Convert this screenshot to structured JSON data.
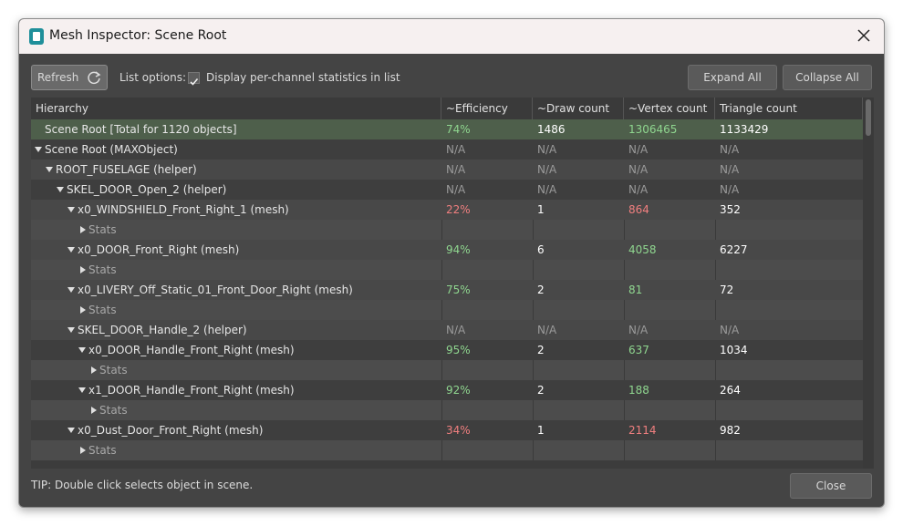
{
  "window": {
    "title": "Mesh Inspector: Scene Root"
  },
  "toolbar": {
    "refresh": "Refresh",
    "list_options": "List options:",
    "checkbox_label": "Display per-channel statistics in list",
    "checkbox_checked": true,
    "expand_all": "Expand All",
    "collapse_all": "Collapse All"
  },
  "table": {
    "headers": [
      "Hierarchy",
      "~Efficiency",
      "~Draw count",
      "~Vertex count",
      "Triangle count"
    ],
    "rows": [
      {
        "label": "Scene Root [Total for 1120 objects]",
        "level": 0,
        "expander": "none",
        "highlight": "#4e5f4b",
        "cells": [
          "74%",
          "1486",
          "1306465",
          "1133429"
        ],
        "colors": [
          "#8fd68f",
          "#ffffff",
          "#8fd68f",
          "#ffffff"
        ]
      },
      {
        "label": "Scene Root (MAXObject)",
        "level": 0,
        "expander": "open",
        "cells": [
          "N/A",
          "N/A",
          "N/A",
          "N/A"
        ],
        "colors": [
          "#9a9a9a",
          "#9a9a9a",
          "#9a9a9a",
          "#9a9a9a"
        ]
      },
      {
        "label": "ROOT_FUSELAGE (helper)",
        "level": 1,
        "expander": "open",
        "cells": [
          "N/A",
          "N/A",
          "N/A",
          "N/A"
        ],
        "colors": [
          "#9a9a9a",
          "#9a9a9a",
          "#9a9a9a",
          "#9a9a9a"
        ]
      },
      {
        "label": "SKEL_DOOR_Open_2 (helper)",
        "level": 2,
        "expander": "open",
        "cells": [
          "N/A",
          "N/A",
          "N/A",
          "N/A"
        ],
        "colors": [
          "#9a9a9a",
          "#9a9a9a",
          "#9a9a9a",
          "#9a9a9a"
        ]
      },
      {
        "label": "x0_WINDSHIELD_Front_Right_1 (mesh)",
        "level": 3,
        "expander": "open",
        "cells": [
          "22%",
          "1",
          "864",
          "352"
        ],
        "colors": [
          "#f07f7f",
          "#ffffff",
          "#f07f7f",
          "#ffffff"
        ]
      },
      {
        "label": "Stats",
        "level": 4,
        "expander": "closed"
      },
      {
        "label": "x0_DOOR_Front_Right (mesh)",
        "level": 3,
        "expander": "open",
        "cells": [
          "94%",
          "6",
          "4058",
          "6227"
        ],
        "colors": [
          "#8fd68f",
          "#ffffff",
          "#8fd68f",
          "#ffffff"
        ]
      },
      {
        "label": "Stats",
        "level": 4,
        "expander": "closed"
      },
      {
        "label": "x0_LIVERY_Off_Static_01_Front_Door_Right (mesh)",
        "level": 3,
        "expander": "open",
        "cells": [
          "75%",
          "2",
          "81",
          "72"
        ],
        "colors": [
          "#8fd68f",
          "#ffffff",
          "#8fd68f",
          "#ffffff"
        ]
      },
      {
        "label": "Stats",
        "level": 4,
        "expander": "closed"
      },
      {
        "label": "SKEL_DOOR_Handle_2 (helper)",
        "level": 3,
        "expander": "open",
        "cells": [
          "N/A",
          "N/A",
          "N/A",
          "N/A"
        ],
        "colors": [
          "#9a9a9a",
          "#9a9a9a",
          "#9a9a9a",
          "#9a9a9a"
        ]
      },
      {
        "label": "x0_DOOR_Handle_Front_Right (mesh)",
        "level": 4,
        "expander": "open",
        "cells": [
          "95%",
          "2",
          "637",
          "1034"
        ],
        "colors": [
          "#8fd68f",
          "#ffffff",
          "#8fd68f",
          "#ffffff"
        ]
      },
      {
        "label": "Stats",
        "level": 5,
        "expander": "closed"
      },
      {
        "label": "x1_DOOR_Handle_Front_Right (mesh)",
        "level": 4,
        "expander": "open",
        "cells": [
          "92%",
          "2",
          "188",
          "264"
        ],
        "colors": [
          "#8fd68f",
          "#ffffff",
          "#8fd68f",
          "#ffffff"
        ]
      },
      {
        "label": "Stats",
        "level": 5,
        "expander": "closed"
      },
      {
        "label": "x0_Dust_Door_Front_Right (mesh)",
        "level": 3,
        "expander": "open",
        "cells": [
          "34%",
          "1",
          "2114",
          "982"
        ],
        "colors": [
          "#f07f7f",
          "#ffffff",
          "#f07f7f",
          "#ffffff"
        ]
      },
      {
        "label": "Stats",
        "level": 4,
        "expander": "closed"
      }
    ]
  },
  "footer": {
    "tip": "TIP: Double click selects object in scene.",
    "close": "Close"
  }
}
